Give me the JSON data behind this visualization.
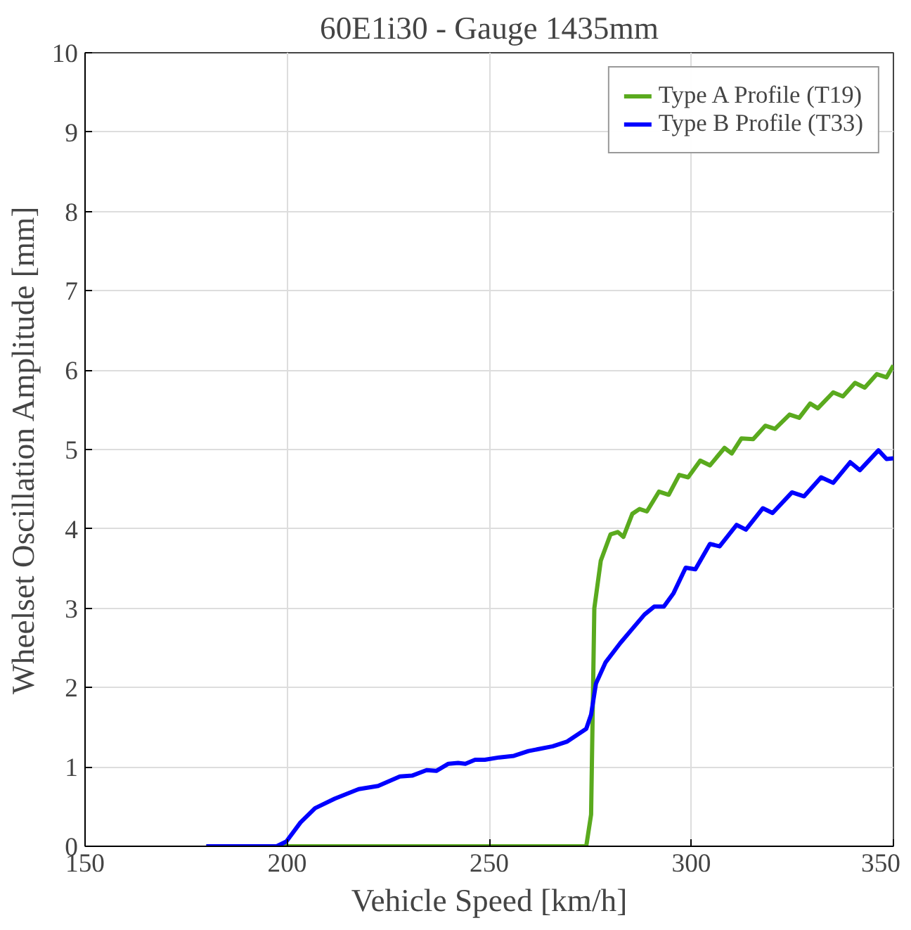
{
  "chart_data": {
    "type": "line",
    "title": "60E1i30 - Gauge 1435mm",
    "xlabel": "Vehicle Speed [km/h]",
    "ylabel": "Wheelset Oscillation Amplitude [mm]",
    "xlim": [
      150,
      350
    ],
    "ylim": [
      0,
      10
    ],
    "xticks": [
      150,
      200,
      250,
      300,
      350
    ],
    "yticks": [
      0,
      1,
      2,
      3,
      4,
      5,
      6,
      7,
      8,
      9,
      10
    ],
    "grid": true,
    "legend": "top right",
    "line_style": "solid",
    "series": [
      {
        "name": "Type A Profile (T19)",
        "color": "#5aaa1e",
        "x": [
          180,
          274,
          275.2,
          276,
          277.6,
          280,
          281.8,
          283.2,
          285.4,
          287.2,
          289,
          292,
          294.4,
          297,
          299.2,
          302.2,
          304.6,
          308.2,
          310,
          312.4,
          315.3,
          318.3,
          320.7,
          324.3,
          326.7,
          329.4,
          331.3,
          335.1,
          337.5,
          340.5,
          342.9,
          345.9,
          348.3,
          350
        ],
        "values": [
          0,
          0,
          0.4,
          3.0,
          3.6,
          3.93,
          3.96,
          3.9,
          4.19,
          4.25,
          4.22,
          4.47,
          4.43,
          4.68,
          4.65,
          4.86,
          4.8,
          5.02,
          4.95,
          5.14,
          5.13,
          5.3,
          5.26,
          5.44,
          5.4,
          5.58,
          5.52,
          5.72,
          5.67,
          5.84,
          5.78,
          5.95,
          5.91,
          6.06
        ]
      },
      {
        "name": "Type B Profile (T33)",
        "color": "#0000ff",
        "x": [
          180,
          197.4,
          199.8,
          203.3,
          206.9,
          211.8,
          217.7,
          222.5,
          227.9,
          230.9,
          234.5,
          236.9,
          239.9,
          242.3,
          244.1,
          246.5,
          248.9,
          252.5,
          256.1,
          259.7,
          265.7,
          269.3,
          274,
          275.2,
          276.4,
          278.8,
          282.4,
          285.4,
          288.4,
          290.8,
          293.2,
          295.6,
          298.6,
          301,
          304.6,
          307,
          311.2,
          313.5,
          317.7,
          320.1,
          324.9,
          327.9,
          332.1,
          335.1,
          339.3,
          341.7,
          346.3,
          348.3,
          350
        ],
        "values": [
          0,
          0,
          0.06,
          0.3,
          0.48,
          0.6,
          0.72,
          0.76,
          0.88,
          0.89,
          0.96,
          0.95,
          1.04,
          1.05,
          1.04,
          1.09,
          1.09,
          1.12,
          1.14,
          1.2,
          1.26,
          1.32,
          1.48,
          1.66,
          2.05,
          2.32,
          2.56,
          2.74,
          2.92,
          3.02,
          3.02,
          3.19,
          3.51,
          3.49,
          3.81,
          3.78,
          4.05,
          3.99,
          4.26,
          4.2,
          4.46,
          4.41,
          4.65,
          4.58,
          4.84,
          4.74,
          4.99,
          4.88,
          4.89
        ]
      }
    ]
  }
}
